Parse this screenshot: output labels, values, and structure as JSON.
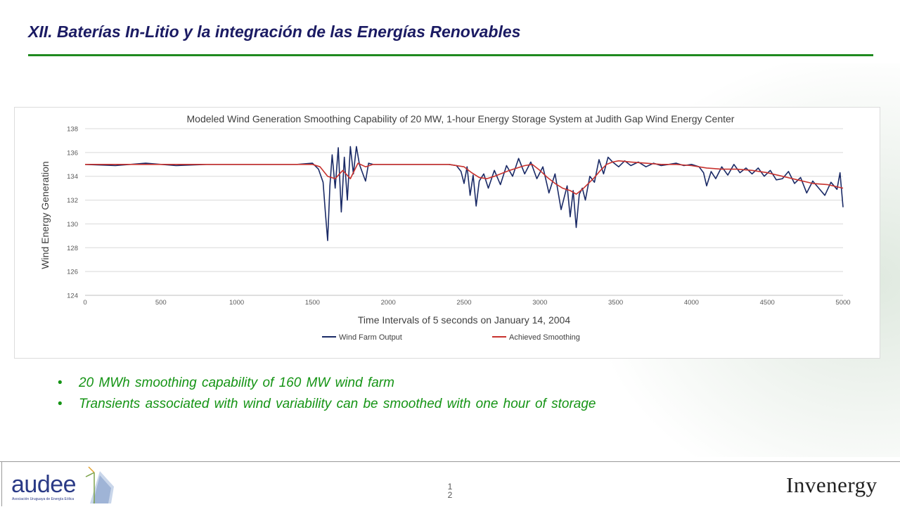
{
  "slide": {
    "title": "XII.  Baterías In-Litio y la integración de las Energías Renovables",
    "bullets": [
      "20 MWh smoothing capability of 160 MW wind farm",
      "Transients associated with wind variability can be smoothed with one hour of storage"
    ],
    "page_number": "1\n2"
  },
  "footer": {
    "left_logo_text": "audee",
    "left_logo_subtext": "Asociación Uruguaya de Energía Eólica",
    "right_logo_text": "Invenergy"
  },
  "colors": {
    "title": "#1b1b63",
    "rule": "#1f8a1f",
    "bullet_text": "#159415",
    "wind_series": "#1a2a66",
    "smooth_series": "#c8322e"
  },
  "chart_data": {
    "type": "line",
    "title": "Modeled Wind Generation Smoothing Capability  of 20 MW, 1-hour Energy Storage System at Judith Gap Wind Energy Center",
    "xlabel": "Time Intervals of 5 seconds on January 14, 2004",
    "ylabel": "Wind Energy Generation",
    "xlim": [
      0,
      5000
    ],
    "ylim": [
      124,
      138
    ],
    "x_ticks": [
      "0",
      "500",
      "1000",
      "1500",
      "2000",
      "2500",
      "3000",
      "3500",
      "4000",
      "4500",
      "5000"
    ],
    "y_ticks": [
      "124",
      "126",
      "128",
      "130",
      "132",
      "134",
      "136",
      "138"
    ],
    "grid": true,
    "legend_position": "bottom",
    "series": [
      {
        "name": "Wind Farm Output",
        "x": [
          0,
          200,
          400,
          600,
          800,
          1000,
          1200,
          1400,
          1500,
          1540,
          1570,
          1585,
          1600,
          1615,
          1630,
          1650,
          1670,
          1690,
          1710,
          1730,
          1750,
          1770,
          1790,
          1810,
          1830,
          1850,
          1870,
          1900,
          2000,
          2100,
          2200,
          2300,
          2400,
          2450,
          2480,
          2500,
          2520,
          2540,
          2560,
          2580,
          2600,
          2630,
          2660,
          2700,
          2740,
          2780,
          2820,
          2860,
          2900,
          2940,
          2980,
          3020,
          3060,
          3100,
          3140,
          3180,
          3200,
          3220,
          3240,
          3260,
          3280,
          3300,
          3330,
          3360,
          3390,
          3420,
          3450,
          3480,
          3520,
          3560,
          3600,
          3650,
          3700,
          3750,
          3800,
          3850,
          3900,
          3950,
          4000,
          4050,
          4080,
          4100,
          4130,
          4160,
          4200,
          4240,
          4280,
          4320,
          4360,
          4400,
          4440,
          4480,
          4520,
          4560,
          4600,
          4640,
          4680,
          4720,
          4760,
          4800,
          4840,
          4880,
          4920,
          4960,
          4980,
          5000
        ],
        "values": [
          135.0,
          134.9,
          135.1,
          134.9,
          135.0,
          135.0,
          135.0,
          135.0,
          135.1,
          134.6,
          133.5,
          131.0,
          128.6,
          133.2,
          135.8,
          133.0,
          136.4,
          131.0,
          135.6,
          132.0,
          136.5,
          134.2,
          136.5,
          135.0,
          134.3,
          133.6,
          135.1,
          135.0,
          135.0,
          135.0,
          135.0,
          135.0,
          135.0,
          134.9,
          134.4,
          133.4,
          134.8,
          132.4,
          134.1,
          131.5,
          133.6,
          134.2,
          133.0,
          134.5,
          133.3,
          134.9,
          134.0,
          135.5,
          134.2,
          135.2,
          133.8,
          134.8,
          132.6,
          134.2,
          131.2,
          133.2,
          130.6,
          132.8,
          129.7,
          132.5,
          133.0,
          132.0,
          134.0,
          133.5,
          135.4,
          134.2,
          135.6,
          135.2,
          134.8,
          135.3,
          134.9,
          135.2,
          134.8,
          135.1,
          134.9,
          135.0,
          135.1,
          134.9,
          135.0,
          134.8,
          134.3,
          133.2,
          134.4,
          133.8,
          134.8,
          134.1,
          135.0,
          134.3,
          134.7,
          134.2,
          134.7,
          134.0,
          134.5,
          133.7,
          133.8,
          134.4,
          133.4,
          133.9,
          132.6,
          133.6,
          133.0,
          132.4,
          133.5,
          132.9,
          134.3,
          131.4
        ]
      },
      {
        "name": "Achieved Smoothing",
        "x": [
          0,
          500,
          1000,
          1500,
          1550,
          1600,
          1650,
          1700,
          1750,
          1800,
          1850,
          1900,
          2000,
          2200,
          2400,
          2500,
          2550,
          2600,
          2650,
          2700,
          2800,
          2900,
          2950,
          3000,
          3050,
          3100,
          3150,
          3200,
          3240,
          3280,
          3320,
          3360,
          3400,
          3440,
          3480,
          3520,
          3600,
          3700,
          3800,
          3900,
          4000,
          4100,
          4200,
          4300,
          4400,
          4500,
          4600,
          4700,
          4800,
          4900,
          5000
        ],
        "values": [
          135.0,
          135.0,
          135.0,
          135.0,
          134.8,
          134.0,
          133.8,
          134.5,
          133.8,
          135.1,
          134.8,
          135.0,
          135.0,
          135.0,
          135.0,
          134.8,
          134.3,
          133.9,
          133.8,
          134.0,
          134.5,
          134.9,
          135.0,
          134.5,
          133.9,
          133.4,
          133.0,
          132.8,
          132.5,
          132.9,
          133.4,
          133.9,
          134.5,
          135.0,
          135.2,
          135.3,
          135.2,
          135.1,
          135.0,
          135.0,
          134.9,
          134.7,
          134.6,
          134.6,
          134.5,
          134.3,
          134.0,
          133.7,
          133.4,
          133.3,
          133.0
        ]
      }
    ]
  }
}
